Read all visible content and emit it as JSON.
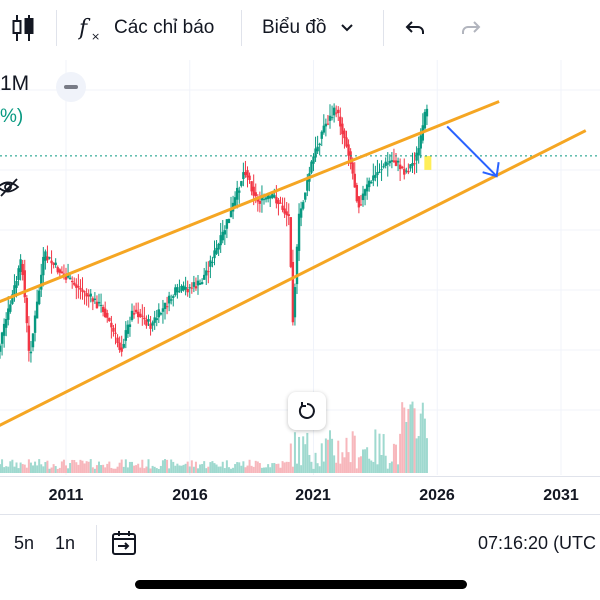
{
  "toolbar": {
    "indicators_label": "Các chỉ báo",
    "chart_type_label": "Biểu đồ"
  },
  "legend": {
    "interval": "1M",
    "change_fragment": "%)"
  },
  "x_axis": {
    "ticks": [
      "2011",
      "2016",
      "2021",
      "2026",
      "2031"
    ]
  },
  "bottom_bar": {
    "range_5y": "5n",
    "range_1y": "1n",
    "clock": "07:16:20 (UTC"
  },
  "colors": {
    "up": "#089981",
    "down": "#f23645",
    "channel": "#f5a623",
    "arrow": "#2962ff",
    "last_price_line": "#089981",
    "current_candle_highlight": "#ffeb3b"
  },
  "icons": {
    "candles": "candlestick-icon",
    "fx": "function-icon",
    "chevron": "chevron-down-icon",
    "undo": "undo-icon",
    "redo": "redo-icon",
    "minus": "minus-icon",
    "reset": "reset-icon",
    "goto_date": "goto-date-icon",
    "eye_off": "eye-off-icon"
  },
  "chart_data": {
    "type": "candlestick",
    "interval": "1M",
    "x_range": [
      2008,
      2032
    ],
    "price_shape_anchors": [
      {
        "x": 2008.0,
        "v": 0.78
      },
      {
        "x": 2009.3,
        "v": 0.48
      },
      {
        "x": 2009.6,
        "v": 0.72
      },
      {
        "x": 2010.2,
        "v": 0.47
      },
      {
        "x": 2011.0,
        "v": 0.52
      },
      {
        "x": 2012.6,
        "v": 0.6
      },
      {
        "x": 2013.3,
        "v": 0.7
      },
      {
        "x": 2013.8,
        "v": 0.6
      },
      {
        "x": 2014.5,
        "v": 0.64
      },
      {
        "x": 2015.5,
        "v": 0.56
      },
      {
        "x": 2016.5,
        "v": 0.54
      },
      {
        "x": 2017.3,
        "v": 0.44
      },
      {
        "x": 2017.9,
        "v": 0.34
      },
      {
        "x": 2018.3,
        "v": 0.26
      },
      {
        "x": 2018.8,
        "v": 0.34
      },
      {
        "x": 2019.5,
        "v": 0.33
      },
      {
        "x": 2020.1,
        "v": 0.38
      },
      {
        "x": 2020.25,
        "v": 0.62
      },
      {
        "x": 2020.5,
        "v": 0.38
      },
      {
        "x": 2021.0,
        "v": 0.25
      },
      {
        "x": 2021.5,
        "v": 0.16
      },
      {
        "x": 2022.0,
        "v": 0.12
      },
      {
        "x": 2022.5,
        "v": 0.22
      },
      {
        "x": 2022.9,
        "v": 0.35
      },
      {
        "x": 2023.3,
        "v": 0.3
      },
      {
        "x": 2023.8,
        "v": 0.26
      },
      {
        "x": 2024.3,
        "v": 0.24
      },
      {
        "x": 2024.8,
        "v": 0.27
      },
      {
        "x": 2025.2,
        "v": 0.24
      },
      {
        "x": 2025.4,
        "v": 0.2
      },
      {
        "x": 2025.6,
        "v": 0.13
      }
    ],
    "channel_upper": [
      [
        2008.0,
        0.59
      ],
      [
        2028.5,
        0.1
      ]
    ],
    "channel_lower": [
      [
        2008.0,
        0.89
      ],
      [
        2032.0,
        0.17
      ]
    ],
    "arrow": {
      "from": [
        2026.4,
        0.16
      ],
      "to": [
        2028.4,
        0.28
      ]
    },
    "last_price_level": 0.26,
    "grid": true
  }
}
